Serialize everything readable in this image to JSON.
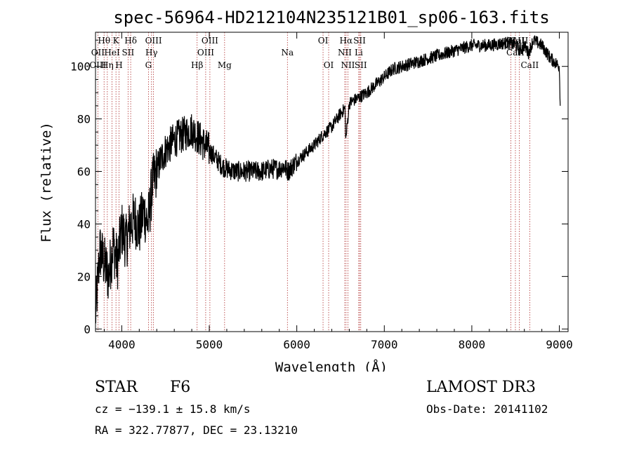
{
  "chart_data": {
    "type": "line",
    "title": "spec-56964-HD212104N235121B01_sp06-163.fits",
    "xlabel": "Wavelength (Å)",
    "ylabel": "Flux (relative)",
    "xlim": [
      3700,
      9100
    ],
    "ylim": [
      -1,
      113
    ],
    "x_ticks": [
      4000,
      5000,
      6000,
      7000,
      8000,
      9000
    ],
    "y_ticks": [
      0,
      20,
      40,
      60,
      80,
      100
    ],
    "grid": false,
    "series": [
      {
        "name": "flux",
        "points": [
          [
            3700,
            5
          ],
          [
            3750,
            30
          ],
          [
            3800,
            25
          ],
          [
            3850,
            20
          ],
          [
            3900,
            32
          ],
          [
            3950,
            25
          ],
          [
            4000,
            38
          ],
          [
            4050,
            33
          ],
          [
            4100,
            40
          ],
          [
            4150,
            42
          ],
          [
            4200,
            38
          ],
          [
            4250,
            45
          ],
          [
            4300,
            40
          ],
          [
            4350,
            55
          ],
          [
            4400,
            60
          ],
          [
            4450,
            65
          ],
          [
            4500,
            68
          ],
          [
            4550,
            70
          ],
          [
            4600,
            72
          ],
          [
            4650,
            73
          ],
          [
            4700,
            74
          ],
          [
            4750,
            75
          ],
          [
            4800,
            76
          ],
          [
            4850,
            74
          ],
          [
            4900,
            72
          ],
          [
            4950,
            70
          ],
          [
            5000,
            68
          ],
          [
            5050,
            66
          ],
          [
            5100,
            64
          ],
          [
            5150,
            62
          ],
          [
            5200,
            61
          ],
          [
            5300,
            60
          ],
          [
            5400,
            60
          ],
          [
            5500,
            60
          ],
          [
            5600,
            60
          ],
          [
            5700,
            61
          ],
          [
            5800,
            61
          ],
          [
            5850,
            62
          ],
          [
            5900,
            60
          ],
          [
            5950,
            62
          ],
          [
            6000,
            64
          ],
          [
            6100,
            67
          ],
          [
            6200,
            70
          ],
          [
            6300,
            74
          ],
          [
            6400,
            77
          ],
          [
            6500,
            82
          ],
          [
            6550,
            84
          ],
          [
            6560,
            72
          ],
          [
            6600,
            86
          ],
          [
            6700,
            88
          ],
          [
            6800,
            90
          ],
          [
            6900,
            93
          ],
          [
            7000,
            96
          ],
          [
            7100,
            99
          ],
          [
            7200,
            100
          ],
          [
            7400,
            102
          ],
          [
            7600,
            104
          ],
          [
            7800,
            106
          ],
          [
            8000,
            108
          ],
          [
            8200,
            108
          ],
          [
            8400,
            109
          ],
          [
            8500,
            108
          ],
          [
            8550,
            106
          ],
          [
            8600,
            108
          ],
          [
            8650,
            105
          ],
          [
            8700,
            110
          ],
          [
            8800,
            108
          ],
          [
            8900,
            103
          ],
          [
            9000,
            100
          ],
          [
            9010,
            85
          ]
        ]
      }
    ],
    "line_labels": [
      {
        "label": "Hθ",
        "wl": 3798,
        "row": 1
      },
      {
        "label": "K",
        "wl": 3934,
        "row": 1
      },
      {
        "label": "Hδ",
        "wl": 4102,
        "row": 1
      },
      {
        "label": "OIII",
        "wl": 4363,
        "row": 1
      },
      {
        "label": "OIII",
        "wl": 5007,
        "row": 1
      },
      {
        "label": "OI",
        "wl": 6300,
        "row": 1
      },
      {
        "label": "Hα",
        "wl": 6563,
        "row": 1
      },
      {
        "label": "SII",
        "wl": 6717,
        "row": 1
      },
      {
        "label": "OI",
        "wl": 8446,
        "row": 1
      },
      {
        "label": "CaII",
        "wl": 8498,
        "row": 1
      },
      {
        "label": "CaII",
        "wl": 8542,
        "row": 1
      },
      {
        "label": "OII",
        "wl": 3727,
        "row": 2
      },
      {
        "label": "HeI",
        "wl": 3889,
        "row": 2
      },
      {
        "label": "SII",
        "wl": 4072,
        "row": 2
      },
      {
        "label": "Hγ",
        "wl": 4340,
        "row": 2
      },
      {
        "label": "OIII",
        "wl": 4959,
        "row": 2
      },
      {
        "label": "Na",
        "wl": 5893,
        "row": 2
      },
      {
        "label": "NII",
        "wl": 6548,
        "row": 2
      },
      {
        "label": "Li",
        "wl": 6708,
        "row": 2
      },
      {
        "label": "CaII",
        "wl": 8498,
        "row": 2
      },
      {
        "label": "OIII",
        "wl": 3727,
        "row": 3
      },
      {
        "label": "Hη",
        "wl": 3835,
        "row": 3
      },
      {
        "label": "H",
        "wl": 3969,
        "row": 3
      },
      {
        "label": "G",
        "wl": 4305,
        "row": 3
      },
      {
        "label": "Hβ",
        "wl": 4861,
        "row": 3
      },
      {
        "label": "Mg",
        "wl": 5175,
        "row": 3
      },
      {
        "label": "OI",
        "wl": 6364,
        "row": 3
      },
      {
        "label": "NII",
        "wl": 6584,
        "row": 3
      },
      {
        "label": "SII",
        "wl": 6731,
        "row": 3
      },
      {
        "label": "CaII",
        "wl": 8662,
        "row": 3
      }
    ],
    "line_marks": [
      3727,
      3798,
      3835,
      3889,
      3934,
      3969,
      4072,
      4102,
      4305,
      4340,
      4363,
      4861,
      4959,
      5007,
      5175,
      5893,
      6300,
      6364,
      6548,
      6563,
      6584,
      6708,
      6717,
      6731,
      8446,
      8498,
      8542,
      8662
    ]
  },
  "info": {
    "object_class": "STAR",
    "subclass": "F6",
    "survey": "LAMOST DR3",
    "redshift": "cz = −139.1 ± 15.8 km/s",
    "obs_date": "Obs-Date: 20141102",
    "coords": "RA = 322.77877, DEC =  23.13210"
  },
  "colors": {
    "line": "#000000",
    "marker": "#b03030",
    "axis": "#000000"
  }
}
